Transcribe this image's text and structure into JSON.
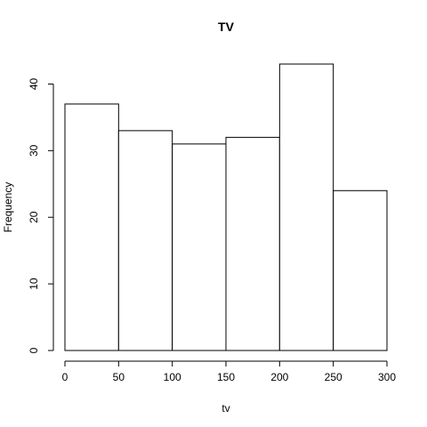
{
  "chart_data": {
    "type": "bar",
    "title": "TV",
    "xlabel": "tv",
    "ylabel": "Frequency",
    "bins": [
      {
        "from": 0,
        "to": 50,
        "count": 37
      },
      {
        "from": 50,
        "to": 100,
        "count": 33
      },
      {
        "from": 100,
        "to": 150,
        "count": 31
      },
      {
        "from": 150,
        "to": 200,
        "count": 32
      },
      {
        "from": 200,
        "to": 250,
        "count": 43
      },
      {
        "from": 250,
        "to": 300,
        "count": 24
      }
    ],
    "xlim": [
      0,
      300
    ],
    "ylim": [
      0,
      43
    ],
    "x_ticks": [
      0,
      50,
      100,
      150,
      200,
      250,
      300
    ],
    "y_ticks": [
      0,
      10,
      20,
      30,
      40
    ],
    "grid": false,
    "colors": {
      "bar_fill": "#ffffff",
      "bar_stroke": "#000000"
    }
  }
}
